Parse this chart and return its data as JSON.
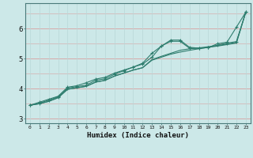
{
  "xlabel": "Humidex (Indice chaleur)",
  "bg_color": "#cce8e8",
  "line_color": "#2e7d6e",
  "xlim": [
    -0.5,
    23.5
  ],
  "ylim": [
    2.85,
    6.85
  ],
  "xticks": [
    0,
    1,
    2,
    3,
    4,
    5,
    6,
    7,
    8,
    9,
    10,
    11,
    12,
    13,
    14,
    15,
    16,
    17,
    18,
    19,
    20,
    21,
    22,
    23
  ],
  "yticks": [
    3,
    4,
    5,
    6
  ],
  "hgrid_color": "#d9a0a0",
  "vgrid_color": "#b8d8d8",
  "line1_x": [
    0,
    1,
    2,
    3,
    4,
    5,
    6,
    7,
    8,
    9,
    10,
    11,
    12,
    13,
    14,
    15,
    16,
    17,
    18,
    19,
    20,
    21,
    22,
    23
  ],
  "line1_y": [
    3.45,
    3.55,
    3.65,
    3.75,
    4.05,
    4.1,
    4.2,
    4.32,
    4.38,
    4.52,
    4.62,
    4.72,
    4.82,
    5.05,
    5.42,
    5.62,
    5.62,
    5.38,
    5.35,
    5.37,
    5.5,
    5.55,
    6.05,
    6.55
  ],
  "line2_x": [
    0,
    1,
    2,
    3,
    4,
    5,
    6,
    7,
    8,
    9,
    10,
    11,
    12,
    13,
    14,
    15,
    16,
    17,
    18,
    19,
    20,
    21,
    22,
    23
  ],
  "line2_y": [
    3.45,
    3.5,
    3.58,
    3.7,
    3.98,
    4.03,
    4.08,
    4.22,
    4.28,
    4.42,
    4.52,
    4.62,
    4.7,
    4.95,
    5.05,
    5.15,
    5.22,
    5.28,
    5.33,
    5.38,
    5.42,
    5.47,
    5.52,
    6.55
  ],
  "line3_x": [
    0,
    1,
    2,
    3,
    4,
    5,
    6,
    7,
    8,
    9,
    10,
    11,
    12,
    13,
    14,
    15,
    16,
    17,
    18,
    19,
    20,
    21,
    22,
    23
  ],
  "line3_y": [
    3.45,
    3.5,
    3.58,
    3.7,
    3.98,
    4.03,
    4.08,
    4.22,
    4.28,
    4.42,
    4.52,
    4.62,
    4.7,
    4.97,
    5.08,
    5.18,
    5.28,
    5.33,
    5.36,
    5.4,
    5.44,
    5.49,
    5.54,
    6.55
  ],
  "line4_x": [
    0,
    1,
    2,
    3,
    4,
    5,
    6,
    7,
    8,
    9,
    10,
    11,
    12,
    13,
    14,
    15,
    16,
    17,
    18,
    19,
    20,
    21,
    22,
    23
  ],
  "line4_y": [
    3.45,
    3.52,
    3.62,
    3.73,
    4.02,
    4.07,
    4.12,
    4.28,
    4.33,
    4.48,
    4.6,
    4.72,
    4.85,
    5.18,
    5.42,
    5.58,
    5.58,
    5.35,
    5.35,
    5.37,
    5.45,
    5.52,
    5.57,
    6.55
  ]
}
